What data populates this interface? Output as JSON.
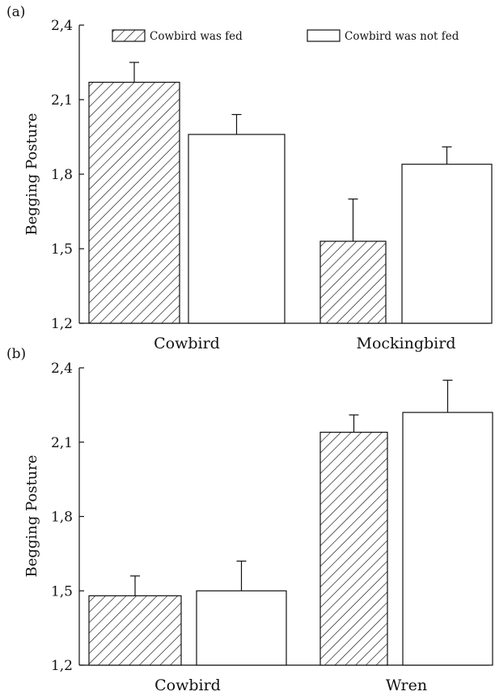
{
  "chart_data": [
    {
      "type": "bar",
      "panel_label": "(a)",
      "ylabel": "Begging Posture",
      "ylim": [
        1.2,
        2.4
      ],
      "yticks": [
        "1,2",
        "1,5",
        "1,8",
        "2,1",
        "2,4"
      ],
      "ytick_values": [
        1.2,
        1.5,
        1.8,
        2.1,
        2.4
      ],
      "categories": [
        "Cowbird",
        "Mockingbird"
      ],
      "legend": {
        "placement": "top",
        "entries": [
          "Cowbird was fed",
          "Cowbird was not fed"
        ]
      },
      "series": [
        {
          "name": "Cowbird was fed",
          "pattern": "hatched",
          "values": [
            2.17,
            1.53
          ],
          "errors": [
            0.08,
            0.17
          ]
        },
        {
          "name": "Cowbird was not fed",
          "pattern": "open",
          "values": [
            1.96,
            1.84
          ],
          "errors": [
            0.08,
            0.07
          ]
        }
      ]
    },
    {
      "type": "bar",
      "panel_label": "(b)",
      "ylabel": "Begging Posture",
      "ylim": [
        1.2,
        2.4
      ],
      "yticks": [
        "1,2",
        "1,5",
        "1,8",
        "2,1",
        "2,4"
      ],
      "ytick_values": [
        1.2,
        1.5,
        1.8,
        2.1,
        2.4
      ],
      "categories": [
        "Cowbird",
        "Wren"
      ],
      "series": [
        {
          "name": "Cowbird was fed",
          "pattern": "hatched",
          "values": [
            1.48,
            2.14
          ],
          "errors": [
            0.08,
            0.07
          ]
        },
        {
          "name": "Cowbird was not fed",
          "pattern": "open",
          "values": [
            1.5,
            2.22
          ],
          "errors": [
            0.12,
            0.13
          ]
        }
      ]
    }
  ],
  "colors": {
    "ink": "#111111",
    "background": "#ffffff"
  }
}
